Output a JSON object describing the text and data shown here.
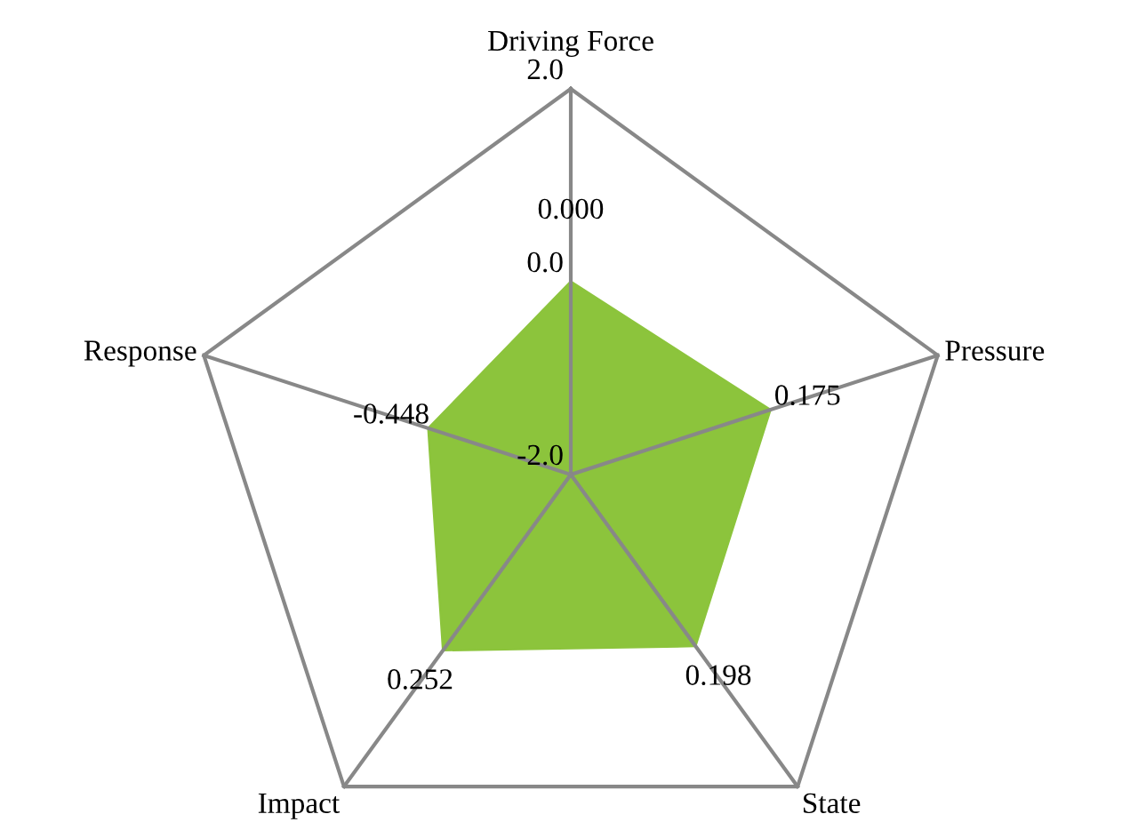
{
  "chart_data": {
    "type": "radar",
    "categories": [
      "Driving Force",
      "Pressure",
      "State",
      "Impact",
      "Response"
    ],
    "series": [
      {
        "color": "#8cc43c",
        "values": [
          0.0,
          0.175,
          0.198,
          0.252,
          -0.448
        ]
      }
    ],
    "ylim": [
      -2.0,
      2.0
    ],
    "yticks": [
      {
        "value": -2.0,
        "label": "-2.0"
      },
      {
        "value": 0.0,
        "label": "0.0"
      },
      {
        "value": 2.0,
        "label": "2.0"
      }
    ],
    "value_labels": [
      "0.000",
      "0.175",
      "0.198",
      "0.252",
      "-0.448"
    ]
  }
}
